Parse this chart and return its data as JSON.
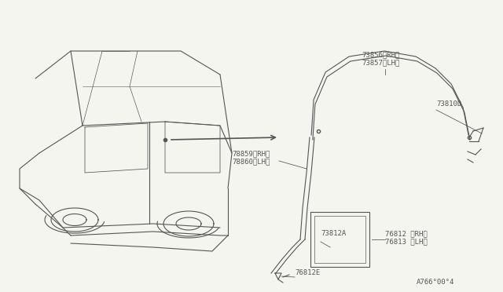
{
  "bg_color": "#f5f5f0",
  "line_color": "#555555",
  "text_color": "#555555",
  "title": "",
  "footer": "A766°00°4",
  "labels": {
    "73856_73857": [
      "73856〈RH〉",
      "73857〈LH〉"
    ],
    "73810D": "73810D",
    "78859_78860": [
      "78859〈RH〉",
      "78860〈LH〉"
    ],
    "73812A": "73812A",
    "76812_76813": [
      "76812 〈RH〉",
      "76813 〈LH〉"
    ],
    "76812E": "76812E"
  },
  "font_size": 6.5,
  "lw": 0.8
}
